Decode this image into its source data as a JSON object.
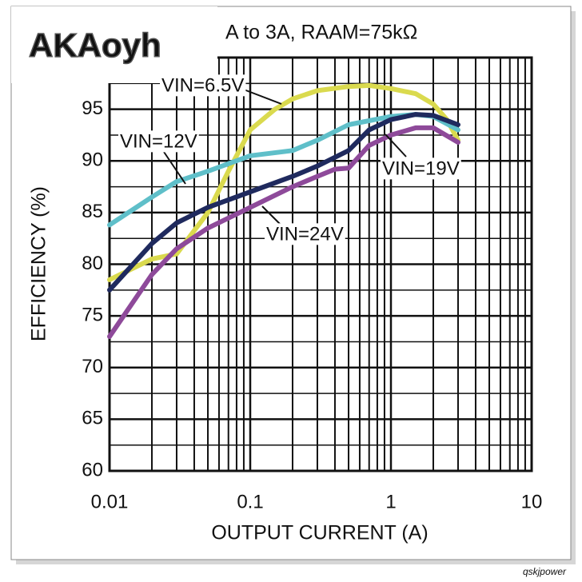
{
  "chart_data": {
    "type": "line",
    "title": "A to 3A, RAAM=75kΩ",
    "x_label": "OUTPUT CURRENT (A)",
    "y_label": "EFFICIENCY (%)",
    "x_scale": "log",
    "xlim": [
      0.01,
      10
    ],
    "xticks": [
      0.01,
      0.1,
      1,
      10
    ],
    "xminor_ticks": [
      0.02,
      0.03,
      0.04,
      0.05,
      0.06,
      0.07,
      0.08,
      0.09,
      0.2,
      0.3,
      0.4,
      0.5,
      0.6,
      0.7,
      0.8,
      0.9,
      2,
      3,
      4,
      5,
      6,
      7,
      8,
      9
    ],
    "ylim": [
      60,
      100
    ],
    "yticks": [
      60,
      65,
      70,
      75,
      80,
      85,
      90,
      95
    ],
    "yminor_ticks": [
      62.5,
      67.5,
      72.5,
      77.5,
      82.5,
      87.5,
      92.5,
      97.5,
      100
    ],
    "grid": true,
    "series": [
      {
        "name": "VIN=6.5V",
        "color": "#dada4e",
        "x": [
          0.01,
          0.02,
          0.03,
          0.05,
          0.07,
          0.1,
          0.15,
          0.2,
          0.3,
          0.5,
          0.7,
          1,
          1.5,
          2,
          2.5,
          3
        ],
        "values": [
          78.5,
          80.5,
          81,
          85,
          89,
          93,
          95,
          96,
          96.8,
          97.2,
          97.3,
          97,
          96.5,
          95.5,
          94,
          92
        ]
      },
      {
        "name": "VIN=12V",
        "color": "#5fbfc9",
        "x": [
          0.01,
          0.02,
          0.03,
          0.05,
          0.1,
          0.2,
          0.3,
          0.5,
          1,
          1.5,
          2,
          3
        ],
        "values": [
          83.8,
          86.5,
          88,
          89,
          90.5,
          91,
          92,
          93.5,
          94.3,
          94.5,
          94.3,
          93
        ]
      },
      {
        "name": "VIN=19V",
        "color": "#1f2a5e",
        "x": [
          0.01,
          0.02,
          0.03,
          0.05,
          0.1,
          0.2,
          0.3,
          0.5,
          0.7,
          1,
          1.5,
          2,
          3
        ],
        "values": [
          77.5,
          82,
          84,
          85.5,
          87,
          88.5,
          89.5,
          91,
          93,
          94,
          94.5,
          94.4,
          93.5
        ]
      },
      {
        "name": "VIN=24V",
        "color": "#8e4a9a",
        "x": [
          0.01,
          0.02,
          0.03,
          0.05,
          0.1,
          0.2,
          0.3,
          0.4,
          0.5,
          0.7,
          1,
          1.5,
          2,
          3
        ],
        "values": [
          73,
          79,
          81.5,
          83.5,
          85.5,
          87.5,
          88.5,
          89.2,
          89.3,
          91.5,
          92.5,
          93.2,
          93.2,
          91.8
        ]
      }
    ],
    "watermarks": [
      "AKAoyh",
      "qskjpower"
    ]
  }
}
